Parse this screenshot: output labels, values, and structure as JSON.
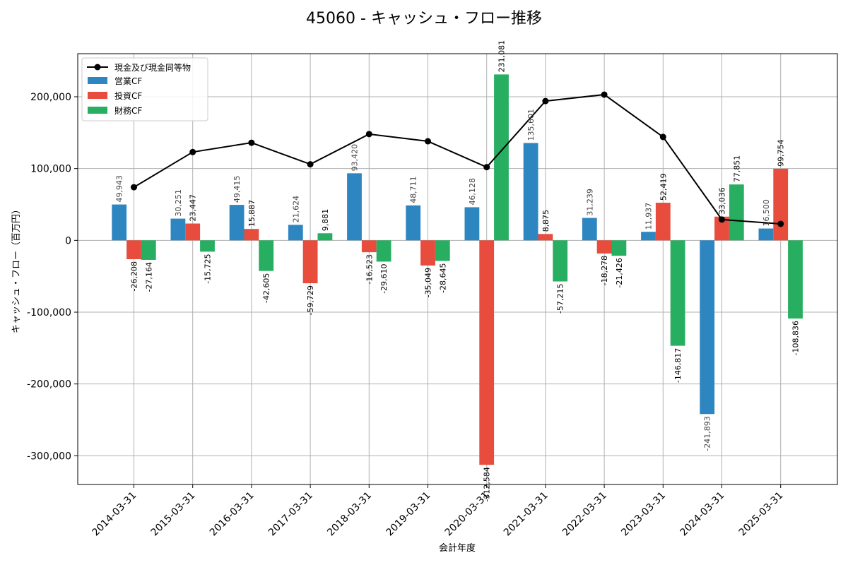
{
  "chart_data": {
    "type": "bar",
    "title": "45060 - キャッシュ・フロー推移",
    "xlabel": "会計年度",
    "ylabel": "キャッシュ・フロー（百万円）",
    "ylim": [
      -340000,
      260000
    ],
    "yticks": [
      -300000,
      -200000,
      -100000,
      0,
      100000,
      200000
    ],
    "ytick_labels": [
      "-300,000",
      "-200,000",
      "-100,000",
      "0",
      "100,000",
      "200,000"
    ],
    "grid": true,
    "legend_position": "top-left",
    "categories": [
      "2014-03-31",
      "2015-03-31",
      "2016-03-31",
      "2017-03-31",
      "2018-03-31",
      "2019-03-31",
      "2020-03-31",
      "2021-03-31",
      "2022-03-31",
      "2023-03-31",
      "2024-03-31",
      "2025-03-31"
    ],
    "series": [
      {
        "name": "営業CF",
        "type": "bar",
        "color": "#2e86c1",
        "values": [
          49943,
          30251,
          49415,
          21624,
          93420,
          48711,
          46128,
          135601,
          31239,
          11937,
          -241893,
          16500
        ],
        "labels": [
          "49,943",
          "30,251",
          "49,415",
          "21,624",
          "93,420",
          "48,711",
          "46,128",
          "135,601",
          "31,239",
          "11,937",
          "-241,893",
          "16,500"
        ]
      },
      {
        "name": "投資CF",
        "type": "bar",
        "color": "#e74c3c",
        "values": [
          -26208,
          23447,
          15887,
          -59729,
          -16523,
          -35049,
          -312584,
          8875,
          -18278,
          52419,
          33036,
          99754
        ],
        "labels": [
          "-26,208",
          "23,447",
          "15,887",
          "-59,729",
          "-16,523",
          "-35,049",
          "-312,584",
          "8,875",
          "-18,278",
          "52,419",
          "33,036",
          "99,754"
        ]
      },
      {
        "name": "財務CF",
        "type": "bar",
        "color": "#27ae60",
        "values": [
          -27164,
          -15725,
          -42605,
          9881,
          -29610,
          -28645,
          231081,
          -57215,
          -21426,
          -146817,
          77851,
          -108836
        ],
        "labels": [
          "-27,164",
          "-15,725",
          "-42,605",
          "9,881",
          "-29,610",
          "-28,645",
          "231,081",
          "-57,215",
          "-21,426",
          "-146,817",
          "77,851",
          "-108,836"
        ]
      },
      {
        "name": "現金及び現金同等物",
        "type": "line",
        "color": "#000000",
        "values": [
          74000,
          123000,
          136000,
          106000,
          148000,
          138000,
          102000,
          194000,
          203000,
          144000,
          29000,
          23000
        ]
      }
    ]
  }
}
